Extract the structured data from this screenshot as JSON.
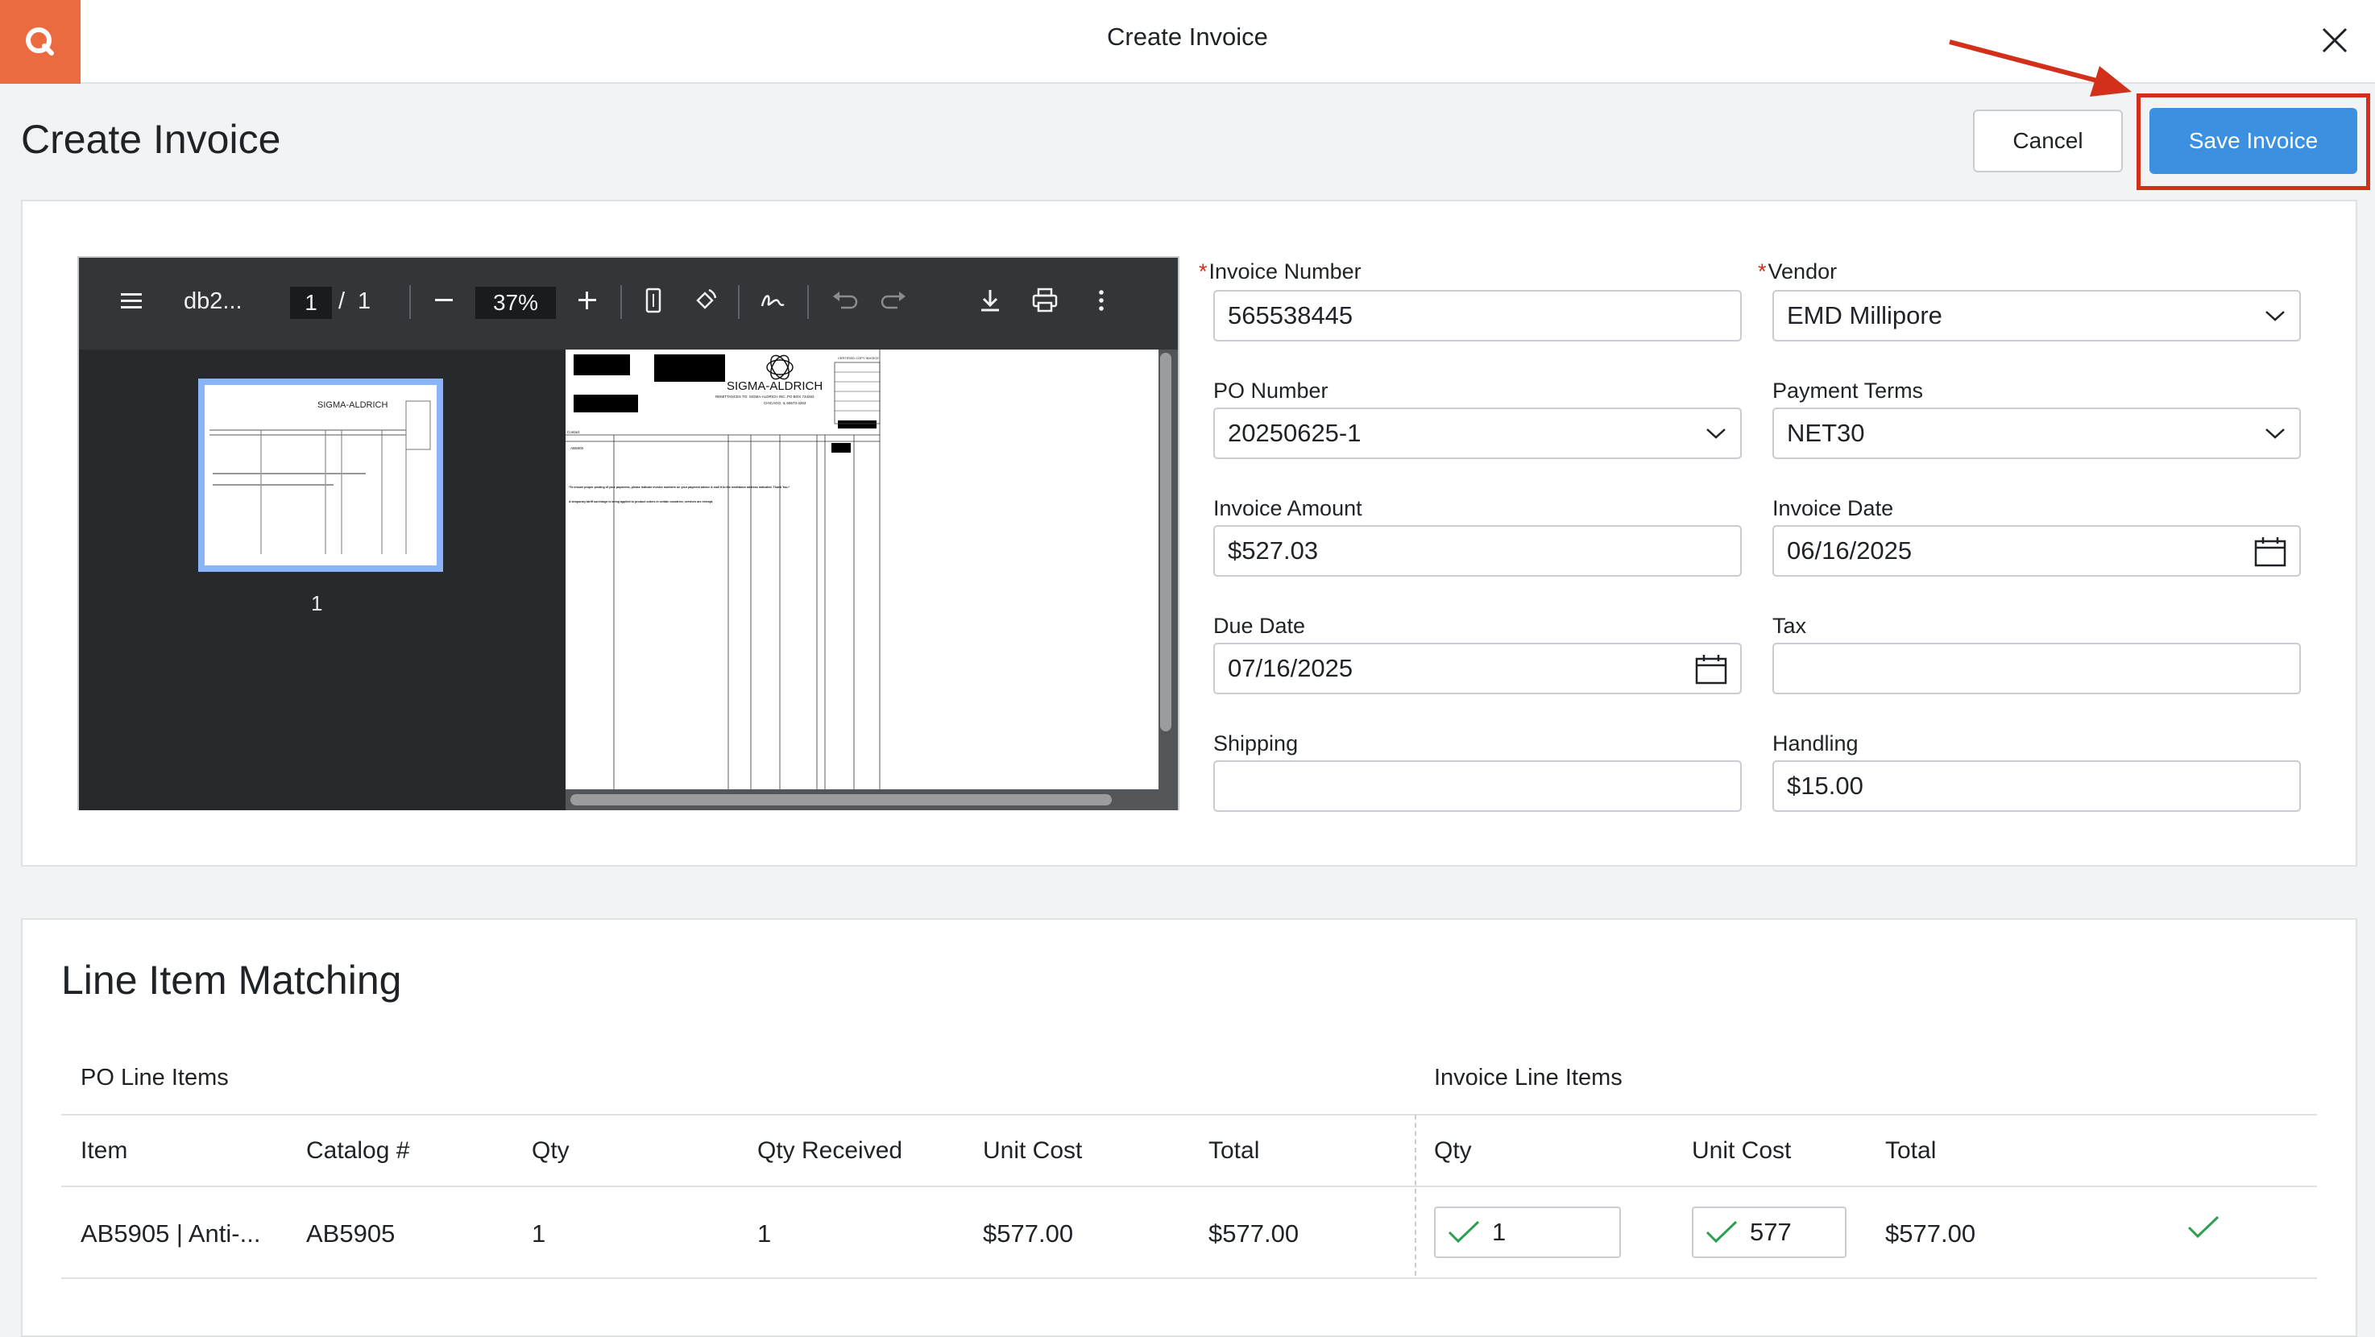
{
  "topbar": {
    "logo_letter": "Q",
    "title": "Create Invoice",
    "close_icon": "close-icon"
  },
  "header": {
    "title": "Create Invoice",
    "cancel_label": "Cancel",
    "save_label": "Save Invoice"
  },
  "colors": {
    "brand": "#ec6a3f",
    "primary": "#3d8fe0",
    "highlight": "#d2301b",
    "success": "#2e9e4f"
  },
  "pdf_viewer": {
    "file_name": "db2...",
    "current_page": "1",
    "page_sep": "/",
    "total_pages": "1",
    "zoom": "37%",
    "thumb_label": "1",
    "icons": [
      "menu-icon",
      "zoom-out-icon",
      "zoom-in-icon",
      "fit-page-icon",
      "rotate-icon",
      "annotate-icon",
      "undo-icon",
      "redo-icon",
      "download-icon",
      "print-icon",
      "more-icon"
    ],
    "document": {
      "vendor_name": "SIGMA-ALDRICH",
      "remit_line": "REMITTANCES TO: SIGMA-ALDRICH INC. PO BOX 734263",
      "city_line": "CHICAGO, IL 60673-4263",
      "contact_label": "Contact",
      "item_code": "AB5905",
      "certified_copy": "CERTIFIED COPY INVOICE",
      "note_1": "*To ensure proper posting of your payments, please indicate invoice numbers on your payment advice & mail it to the remittance address indicated. Thank You.*",
      "note_2": "A temporary tariff surcharge is being applied to product orders in certain countries; services are exempt."
    }
  },
  "form": {
    "invoice_number": {
      "label": "Invoice Number",
      "required": "*",
      "value": "565538445"
    },
    "vendor": {
      "label": "Vendor",
      "required": "*",
      "value": "EMD Millipore"
    },
    "po_number": {
      "label": "PO Number",
      "value": "20250625-1"
    },
    "payment_terms": {
      "label": "Payment Terms",
      "value": "NET30"
    },
    "invoice_amount": {
      "label": "Invoice Amount",
      "value": "$527.03"
    },
    "invoice_date": {
      "label": "Invoice Date",
      "value": "06/16/2025"
    },
    "due_date": {
      "label": "Due Date",
      "value": "07/16/2025"
    },
    "tax": {
      "label": "Tax",
      "value": ""
    },
    "shipping": {
      "label": "Shipping",
      "value": ""
    },
    "handling": {
      "label": "Handling",
      "value": "$15.00"
    }
  },
  "line_items": {
    "title": "Line Item Matching",
    "po_group_label": "PO Line Items",
    "invoice_group_label": "Invoice Line Items",
    "po_columns": [
      "Item",
      "Catalog #",
      "Qty",
      "Qty Received",
      "Unit Cost",
      "Total"
    ],
    "invoice_columns": [
      "Qty",
      "Unit Cost",
      "Total"
    ],
    "rows": [
      {
        "item": "AB5905 | Anti-...",
        "catalog": "AB5905",
        "qty": "1",
        "qty_received": "1",
        "unit_cost": "$577.00",
        "total": "$577.00",
        "inv_qty": "1",
        "inv_unit_cost": "577",
        "inv_total": "$577.00"
      }
    ]
  }
}
